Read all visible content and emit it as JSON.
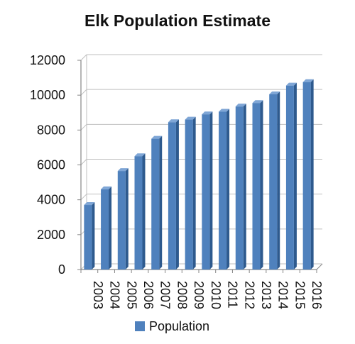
{
  "colors": {
    "bar_front": "#4f81bd",
    "bar_side": "#2e5a8e",
    "bar_top": "#7fa6d6",
    "gridline": "#bfbfbf",
    "axis": "#868686"
  },
  "chart_data": {
    "type": "bar",
    "title": "Elk Population Estimate",
    "xlabel": "",
    "ylabel": "",
    "categories": [
      "2003",
      "2004",
      "2005",
      "2006",
      "2007",
      "2008",
      "2009",
      "2010",
      "2011",
      "2012",
      "2013",
      "2014",
      "2015",
      "2016"
    ],
    "series": [
      {
        "name": "Population",
        "values": [
          3700,
          4600,
          5650,
          6500,
          7500,
          8450,
          8600,
          8900,
          9050,
          9350,
          9550,
          10050,
          10550,
          10750
        ]
      }
    ],
    "ylim": [
      0,
      12000
    ],
    "yticks": [
      "0",
      "2000",
      "4000",
      "6000",
      "8000",
      "10000",
      "12000"
    ],
    "grid": true,
    "legend": "bottom"
  }
}
